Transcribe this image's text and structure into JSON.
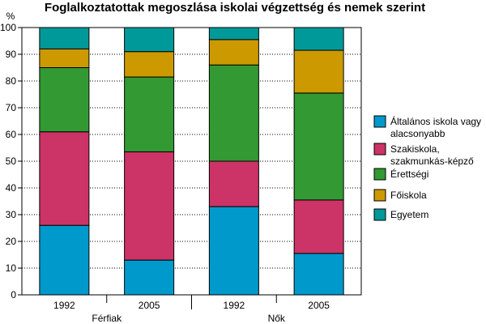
{
  "chart_data": {
    "type": "bar",
    "stacked": true,
    "title": "Foglalkoztatottak megoszlása iskolai végzettség és nemek szerint",
    "ylabel": "%",
    "ylim": [
      0,
      100
    ],
    "yticks": [
      0,
      10,
      20,
      30,
      40,
      50,
      60,
      70,
      80,
      90,
      100
    ],
    "grid": true,
    "legend_position": "right",
    "categories": [
      "1992",
      "2005",
      "1992",
      "2005"
    ],
    "groups": [
      {
        "label": "Férfiak",
        "categories": [
          "1992",
          "2005"
        ]
      },
      {
        "label": "Nők",
        "categories": [
          "1992",
          "2005"
        ]
      }
    ],
    "series": [
      {
        "name": "Általános iskola vagy alacsonyabb",
        "legend_lines": [
          "Általános iskola vagy",
          "alacsonyabb"
        ],
        "color": "#0099cc",
        "values": [
          26,
          13,
          33,
          15.5
        ]
      },
      {
        "name": "Szakiskola, szakmunkás-képző",
        "legend_lines": [
          "Szakiskola,",
          "szakmunkás-képző"
        ],
        "color": "#cc3366",
        "values": [
          35,
          40.5,
          17,
          20
        ]
      },
      {
        "name": "Érettségi",
        "legend_lines": [
          "Érettségi"
        ],
        "color": "#339933",
        "values": [
          24,
          28,
          36,
          40
        ]
      },
      {
        "name": "Főiskola",
        "legend_lines": [
          "Főiskola"
        ],
        "color": "#cc9900",
        "values": [
          7,
          9.5,
          9.5,
          16
        ]
      },
      {
        "name": "Egyetem",
        "legend_lines": [
          "Egyetem"
        ],
        "color": "#009999",
        "values": [
          8,
          9,
          4.5,
          8.5
        ]
      }
    ]
  }
}
